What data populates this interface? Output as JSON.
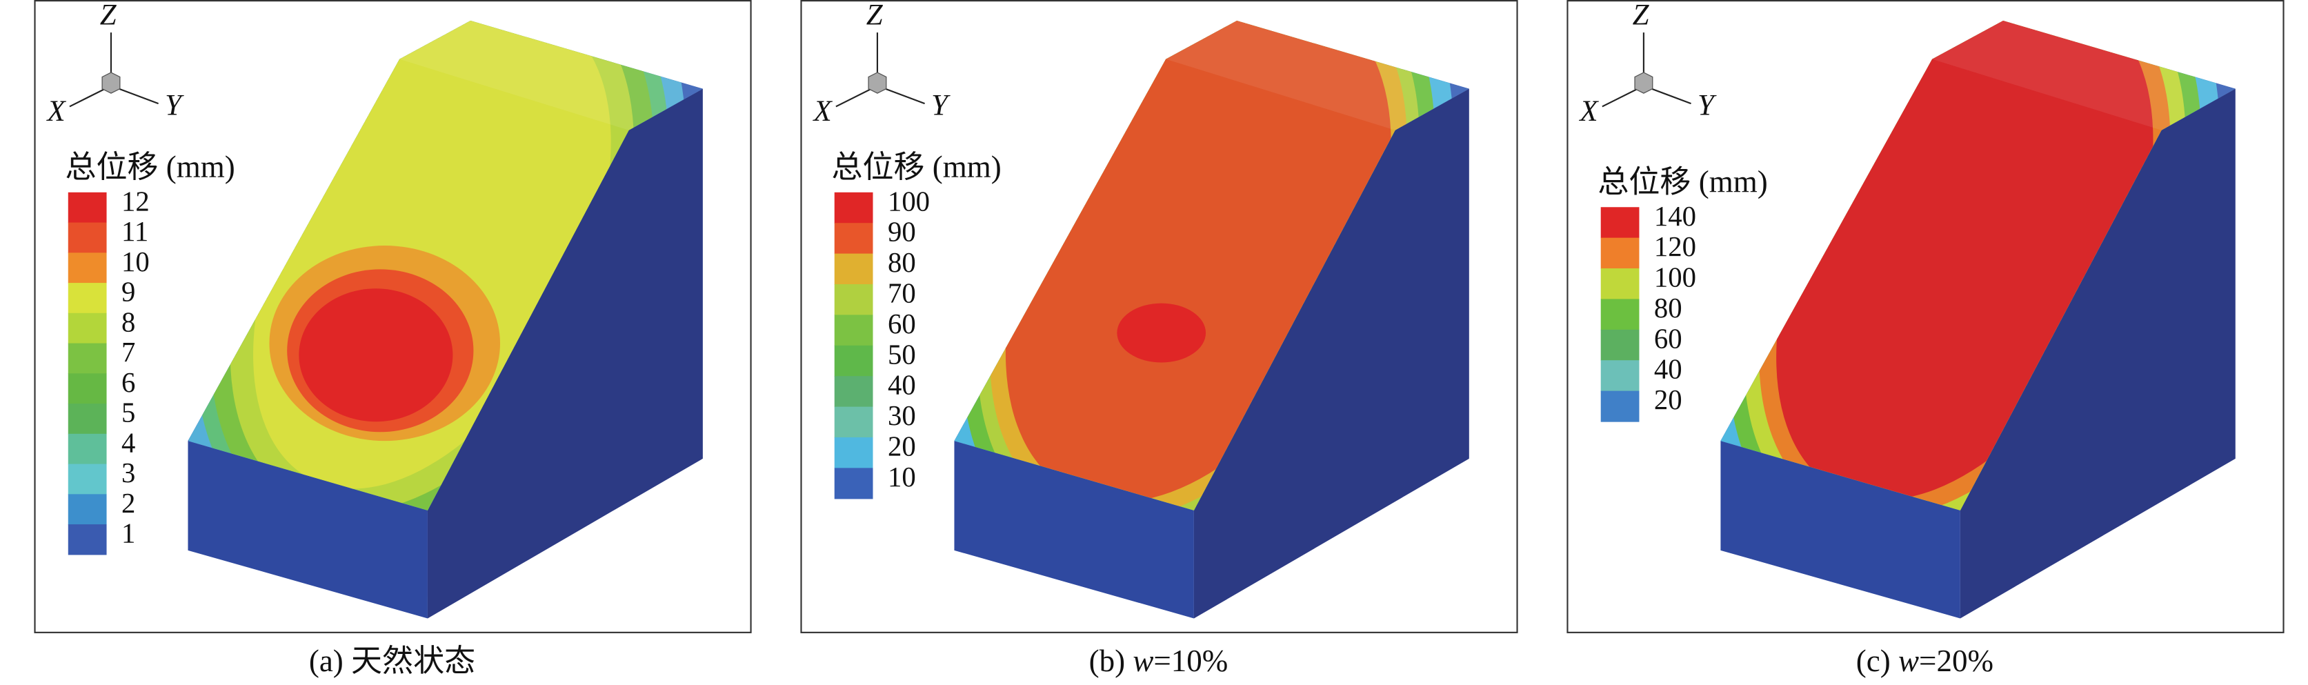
{
  "panels": [
    {
      "axes": [
        "Z",
        "X",
        "Y"
      ],
      "legend_title": "总位移 (mm)",
      "legend": [
        {
          "label": "12",
          "color": "#e02626"
        },
        {
          "label": "11",
          "color": "#e8502a"
        },
        {
          "label": "10",
          "color": "#ef8c2a"
        },
        {
          "label": "9",
          "color": "#d9e23a"
        },
        {
          "label": "8",
          "color": "#b3d63a"
        },
        {
          "label": "7",
          "color": "#7cc243"
        },
        {
          "label": "6",
          "color": "#66b844"
        },
        {
          "label": "5",
          "color": "#5cb358"
        },
        {
          "label": "4",
          "color": "#5fbf9a"
        },
        {
          "label": "3",
          "color": "#62c6cc"
        },
        {
          "label": "2",
          "color": "#3d8fcc"
        },
        {
          "label": "1",
          "color": "#3a5bb0"
        }
      ],
      "caption": [
        {
          "text": "(a) 天然状态"
        }
      ]
    },
    {
      "axes": [
        "Z",
        "X",
        "Y"
      ],
      "legend_title": "总位移 (mm)",
      "legend": [
        {
          "label": "100",
          "color": "#e02626"
        },
        {
          "label": "90",
          "color": "#e8562a"
        },
        {
          "label": "80",
          "color": "#e0b030"
        },
        {
          "label": "70",
          "color": "#b0d040"
        },
        {
          "label": "60",
          "color": "#7cc243"
        },
        {
          "label": "50",
          "color": "#5fb84a"
        },
        {
          "label": "40",
          "color": "#5cb070"
        },
        {
          "label": "30",
          "color": "#6cc0a8"
        },
        {
          "label": "20",
          "color": "#50b8e0"
        },
        {
          "label": "10",
          "color": "#3a62b8"
        }
      ],
      "caption": [
        {
          "text": "(b) "
        },
        {
          "text": "w",
          "italic": true
        },
        {
          "text": "=10%"
        }
      ]
    },
    {
      "axes": [
        "Z",
        "X",
        "Y"
      ],
      "legend_title": "总位移 (mm)",
      "legend": [
        {
          "label": "140",
          "color": "#e02626"
        },
        {
          "label": "120",
          "color": "#ef7f2a"
        },
        {
          "label": "100",
          "color": "#c0d83a"
        },
        {
          "label": "80",
          "color": "#6cc040"
        },
        {
          "label": "60",
          "color": "#5cb060"
        },
        {
          "label": "40",
          "color": "#6cc0b8"
        },
        {
          "label": "20",
          "color": "#4080c8"
        }
      ],
      "caption": [
        {
          "text": "(c) "
        },
        {
          "text": "w",
          "italic": true
        },
        {
          "text": "=20%"
        }
      ]
    }
  ]
}
